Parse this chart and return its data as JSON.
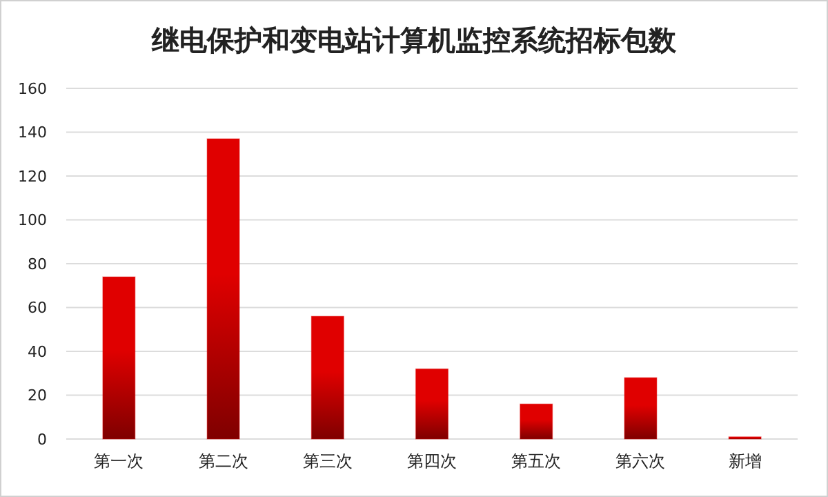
{
  "chart_data": {
    "type": "bar",
    "title": "继电保护和变电站计算机监控系统招标包数",
    "categories": [
      "第一次",
      "第二次",
      "第三次",
      "第四次",
      "第五次",
      "第六次",
      "新增"
    ],
    "values": [
      74,
      137,
      56,
      32,
      16,
      28,
      1
    ],
    "color": "#e00000",
    "ylim": [
      0,
      160
    ],
    "yticks": [
      0,
      20,
      40,
      60,
      80,
      100,
      120,
      140,
      160
    ],
    "grid": "y"
  }
}
